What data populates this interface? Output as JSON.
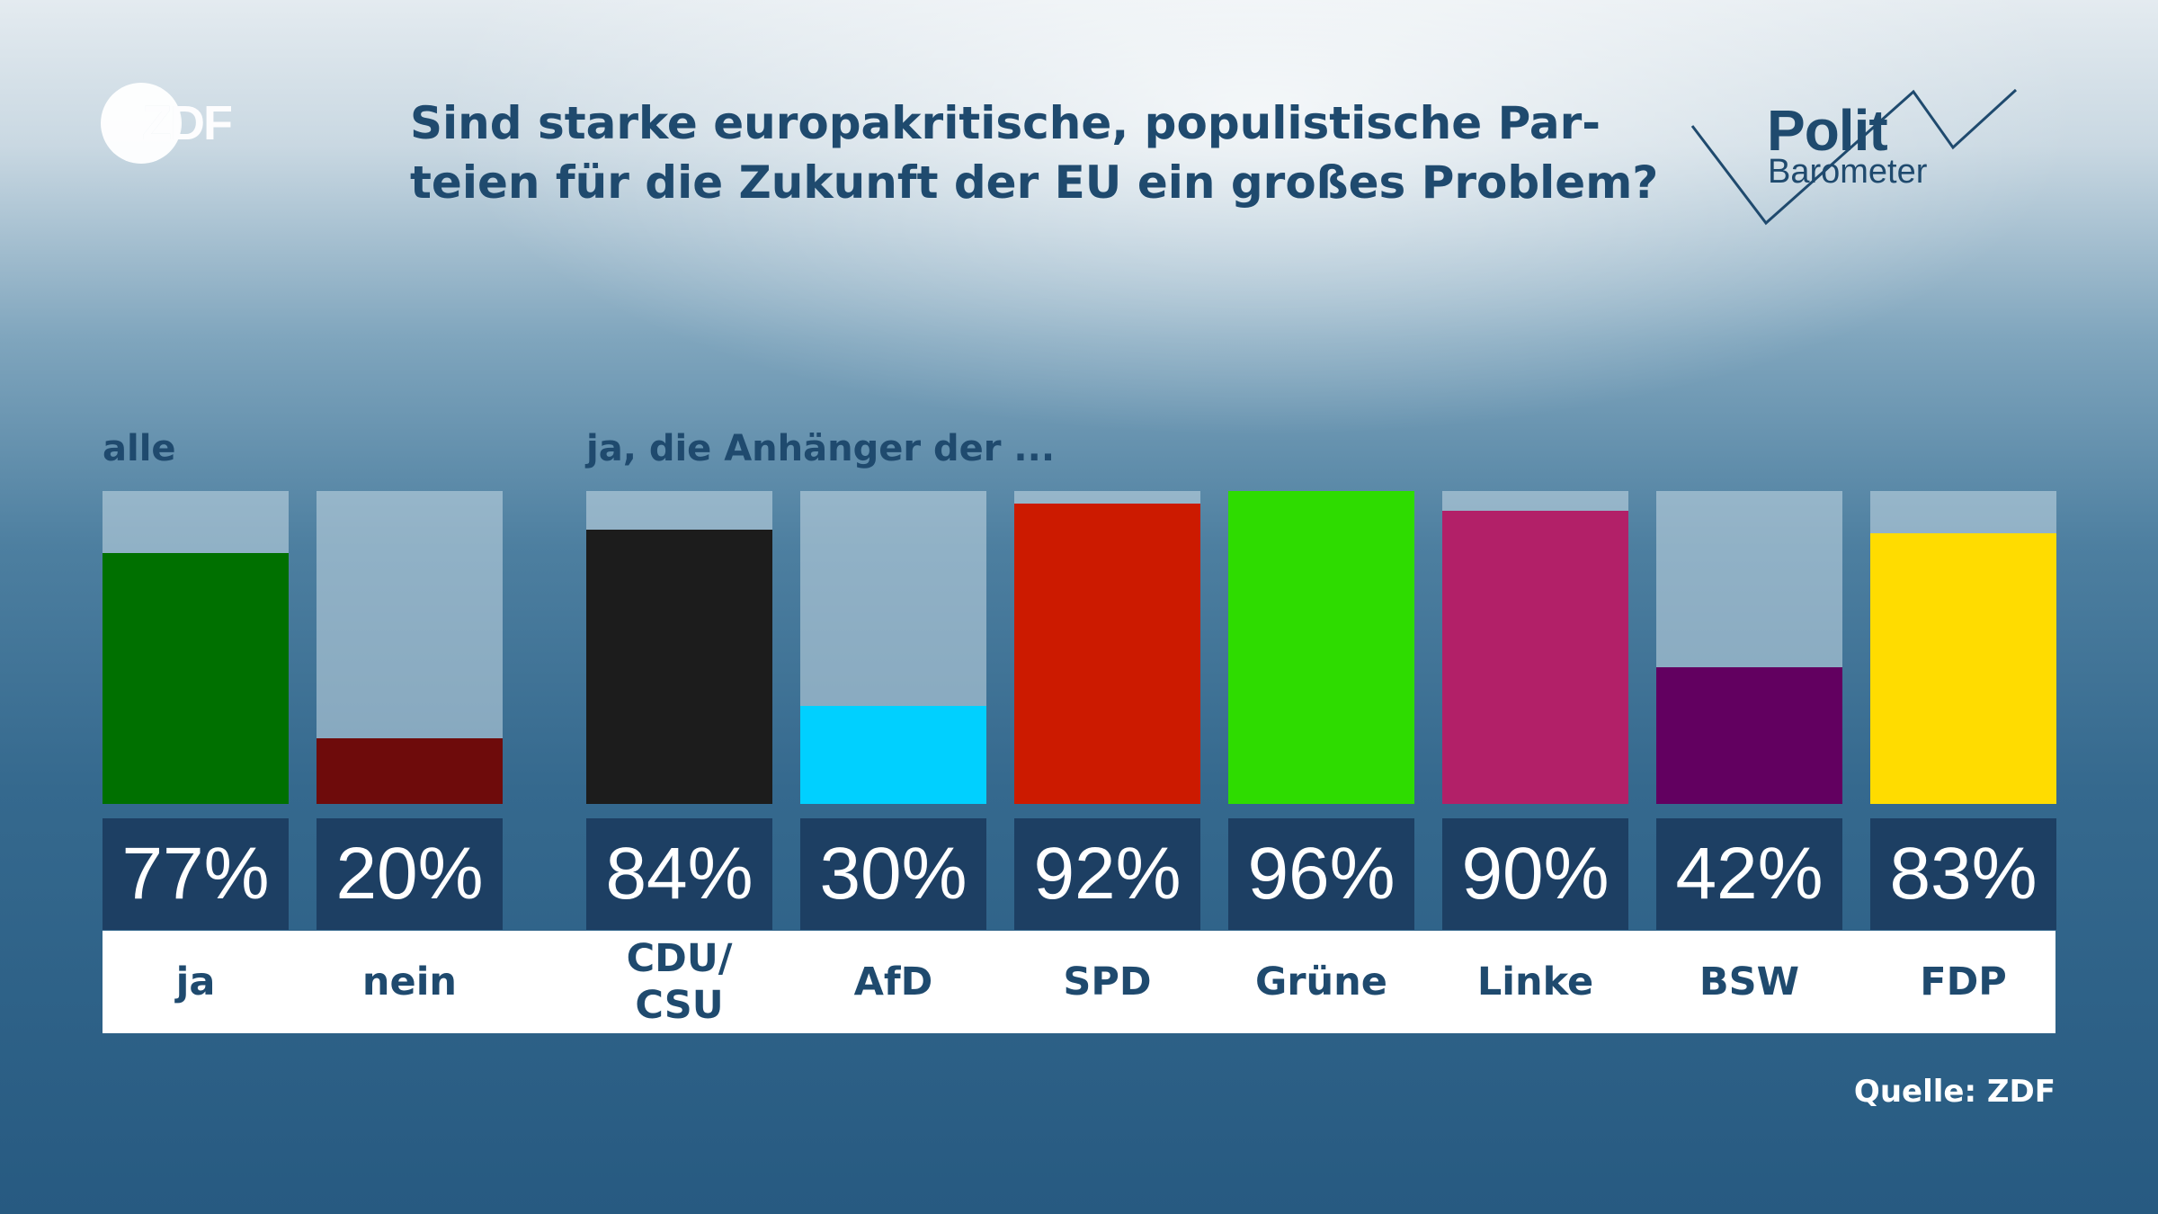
{
  "header": {
    "title_line1": "Sind starke europakritische, populistische Par-",
    "title_line2": "teien für die Zukunft der EU ein großes Problem?"
  },
  "logos": {
    "zdf": "ZDF",
    "polit_word": "Polit",
    "barometer_word": "Barometer"
  },
  "chart_data": {
    "type": "bar",
    "groups": [
      {
        "label": "alle",
        "categories": [
          "ja",
          "nein"
        ],
        "values": [
          77,
          20
        ],
        "colors": [
          "#007000",
          "#6e0b0b"
        ]
      },
      {
        "label": "ja, die Anhänger der ...",
        "categories": [
          "CDU/\nCSU",
          "AfD",
          "SPD",
          "Grüne",
          "Linke",
          "BSW",
          "FDP"
        ],
        "values": [
          84,
          30,
          92,
          96,
          90,
          42,
          83
        ],
        "colors": [
          "#1c1c1c",
          "#00d0ff",
          "#cc1a00",
          "#2edc00",
          "#b22068",
          "#620060",
          "#ffdc00"
        ]
      }
    ],
    "unit": "%",
    "ylim": [
      0,
      96
    ]
  },
  "footer": {
    "source": "Quelle: ZDF"
  }
}
